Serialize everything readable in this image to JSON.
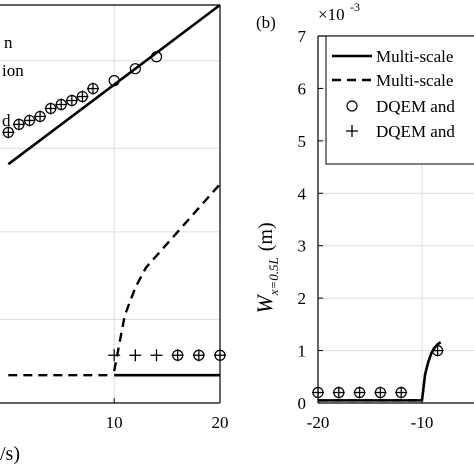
{
  "chart_data": [
    {
      "type": "line",
      "panel_label": "",
      "x_ticks": [
        "10",
        "20"
      ],
      "xlabel_fragment": "/s)",
      "legend_fragments": [
        "n",
        "ion",
        "d"
      ],
      "series": [
        {
          "style": "solid",
          "x": [
            0,
            20
          ],
          "y": [
            0.6,
            1.0
          ]
        },
        {
          "style": "dashed",
          "x": [
            10,
            11,
            12,
            13,
            14,
            15,
            16,
            17,
            18,
            19,
            20
          ],
          "y": [
            0.08,
            0.22,
            0.29,
            0.34,
            0.37,
            0.4,
            0.43,
            0.46,
            0.49,
            0.52,
            0.55
          ]
        },
        {
          "style": "solid",
          "x": [
            10,
            20
          ],
          "y": [
            0.07,
            0.07
          ]
        },
        {
          "style": "dashed",
          "x": [
            0,
            9.5
          ],
          "y": [
            0.07,
            0.07
          ]
        },
        {
          "style": "circle",
          "x": [
            0,
            1,
            2,
            3,
            4,
            5,
            6,
            7,
            8,
            10,
            12,
            14,
            16,
            18,
            20
          ],
          "y": [
            0.68,
            0.7,
            0.71,
            0.72,
            0.74,
            0.75,
            0.76,
            0.77,
            0.79,
            0.81,
            0.84,
            0.87,
            0.12,
            0.12,
            0.12
          ]
        },
        {
          "style": "plus",
          "x": [
            0,
            1,
            2,
            3,
            4,
            5,
            6,
            7,
            8,
            10,
            12,
            14,
            16,
            18,
            20
          ],
          "y": [
            0.68,
            0.7,
            0.71,
            0.72,
            0.74,
            0.75,
            0.76,
            0.77,
            0.79,
            0.12,
            0.12,
            0.12,
            0.12,
            0.12,
            0.12
          ]
        }
      ]
    },
    {
      "type": "line",
      "panel_label": "(b)",
      "ylabel": "W_{x=0.5L} (m)",
      "ylabel_main": "W",
      "ylabel_sub": "x=0.5L",
      "ylabel_unit": "(m)",
      "y_multiplier": "×10",
      "y_multiplier_exp": "-3",
      "x_ticks": [
        "-20",
        "-10"
      ],
      "y_ticks": [
        "0",
        "1",
        "2",
        "3",
        "4",
        "5",
        "6",
        "7"
      ],
      "xlim": [
        -20,
        -5
      ],
      "ylim": [
        0,
        7
      ],
      "legend": [
        {
          "label": "Multi-scale",
          "marker": "solid"
        },
        {
          "label": "Multi-scale",
          "marker": "dashed"
        },
        {
          "label": "DQEM and",
          "marker": "circle"
        },
        {
          "label": "DQEM and",
          "marker": "plus"
        }
      ],
      "series": [
        {
          "style": "solid",
          "x": [
            -20,
            -10,
            -10,
            -9.7,
            -9.4,
            -9.1,
            -8.8,
            -8.5,
            -8.2
          ],
          "y": [
            0.05,
            0.05,
            0.05,
            0.55,
            0.78,
            0.95,
            1.05,
            1.12,
            1.16
          ]
        },
        {
          "style": "dashed",
          "x": [
            -20,
            -10
          ],
          "y": [
            0.05,
            0.05
          ]
        },
        {
          "style": "circle",
          "x": [
            -20,
            -18,
            -16,
            -14,
            -12,
            -8.5
          ],
          "y": [
            0.2,
            0.2,
            0.2,
            0.2,
            0.2,
            1.0
          ]
        },
        {
          "style": "plus",
          "x": [
            -20,
            -18,
            -16,
            -14,
            -12,
            -8.5
          ],
          "y": [
            0.2,
            0.2,
            0.2,
            0.2,
            0.2,
            1.0
          ]
        }
      ]
    }
  ]
}
